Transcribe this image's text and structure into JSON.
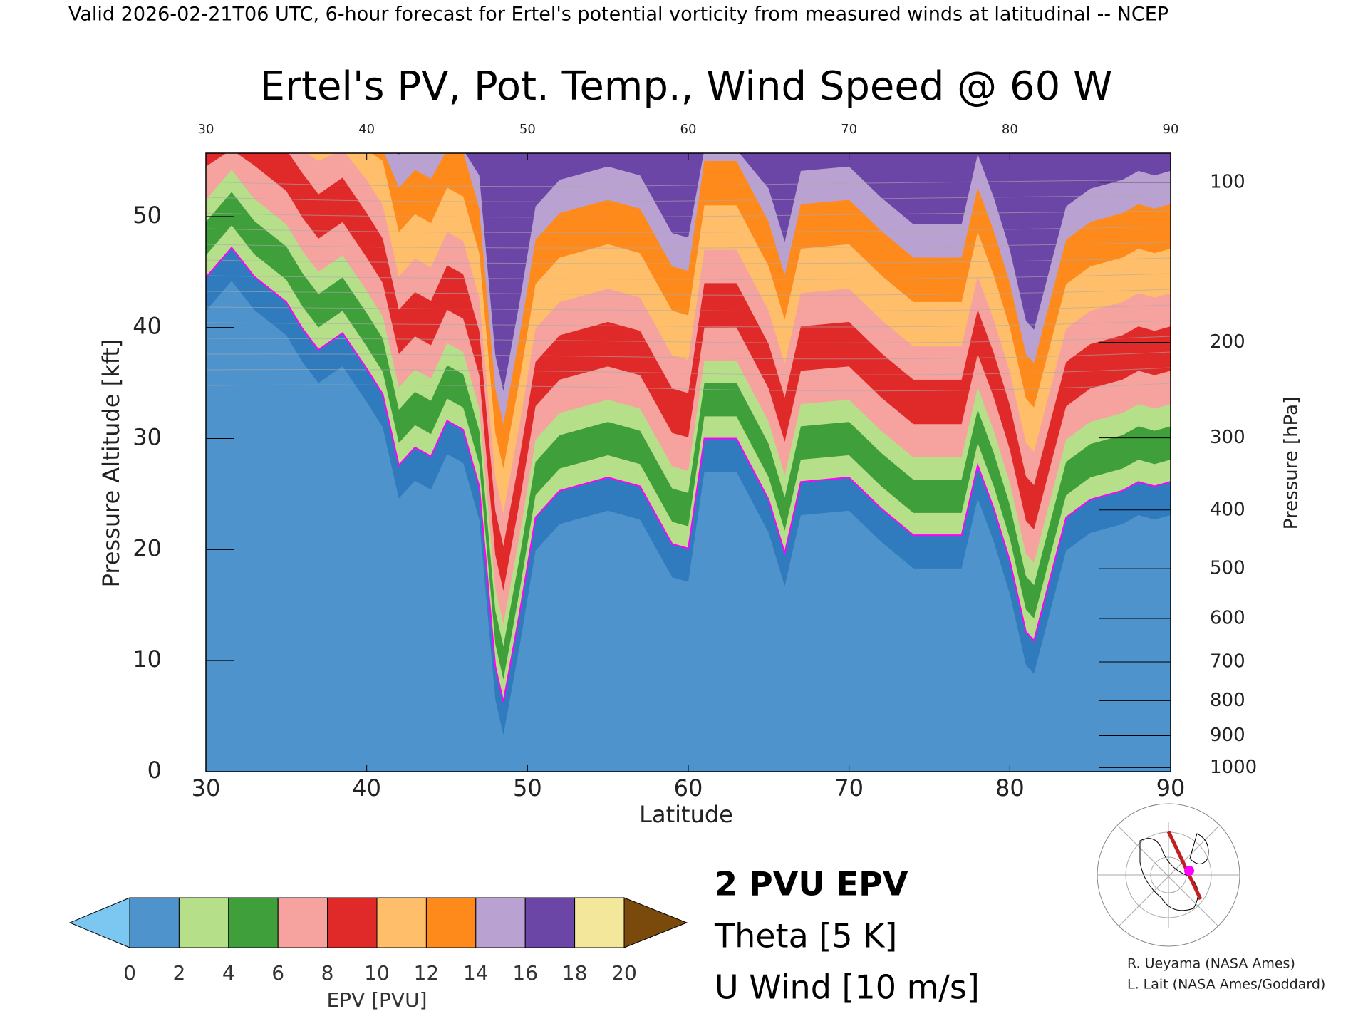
{
  "chart_data": {
    "type": "contour",
    "header": "Valid 2026-02-21T06 UTC, 6-hour forecast for Ertel's potential vorticity from measured winds at latitudinal -- NCEP",
    "title": "Ertel's PV, Pot. Temp., Wind Speed @ 60 W",
    "x_label": "Latitude",
    "y_label": "Pressure Altitude [kft]",
    "y2_label": "Pressure [hPa]",
    "xlim": [
      30,
      90
    ],
    "xticks": [
      30,
      40,
      50,
      60,
      70,
      80,
      90
    ],
    "ylim": [
      0,
      55.7
    ],
    "yticks": [
      0,
      10,
      20,
      30,
      40,
      50
    ],
    "y2scale": "pressure-altitude",
    "y2ticks": [
      100,
      200,
      300,
      400,
      500,
      600,
      700,
      800,
      900,
      1000
    ],
    "series": [
      {
        "name": "2 PVU EPV",
        "color": "#ff00ff",
        "x": [
          30,
          31.6,
          33,
          35,
          36,
          37,
          38.5,
          40,
          41,
          42,
          43,
          44,
          45,
          46,
          47,
          48,
          48.5,
          49.5,
          50.5,
          52,
          55,
          57,
          59,
          60,
          61,
          63,
          65,
          66,
          67,
          70,
          72,
          74,
          77,
          78,
          79,
          80,
          81,
          81.5,
          82.5,
          83.5,
          85,
          87,
          88,
          89,
          90
        ],
        "values": [
          44.5,
          47.2,
          44.6,
          42.3,
          39.9,
          38,
          39.5,
          36.3,
          34,
          27.6,
          29.2,
          28.4,
          31.6,
          30.8,
          25.7,
          9.5,
          6.3,
          14.2,
          22.9,
          25.3,
          26.5,
          25.7,
          20.5,
          20.1,
          30,
          30,
          24.5,
          19.7,
          26.1,
          26.5,
          23.7,
          21.3,
          21.3,
          27.6,
          23.7,
          19,
          12.6,
          11.8,
          17.4,
          22.9,
          24.5,
          25.3,
          26.1,
          25.7,
          26.1
        ]
      }
    ],
    "legend": [
      {
        "name": "Theta [5 K]",
        "color": "#aaaaaa"
      },
      {
        "name": "U Wind [10 m/s]",
        "color": "#000000"
      }
    ],
    "colorbar": {
      "label": "EPV [PVU]",
      "ticks": [
        0,
        2,
        4,
        6,
        8,
        10,
        12,
        14,
        16,
        18,
        20
      ],
      "colors": [
        "#4f93cc",
        "#b6df8a",
        "#3f9f3a",
        "#f6a3a0",
        "#e02a2a",
        "#ffbe6a",
        "#ff8a1c",
        "#b9a2d2",
        "#6b46a6",
        "#f2e79a"
      ],
      "under_color": "#7cc6f2",
      "over_color": "#7a4a0c"
    },
    "credits": [
      "R. Ueyama (NASA Ames)",
      "L. Lait (NASA Ames/Goddard)"
    ]
  }
}
